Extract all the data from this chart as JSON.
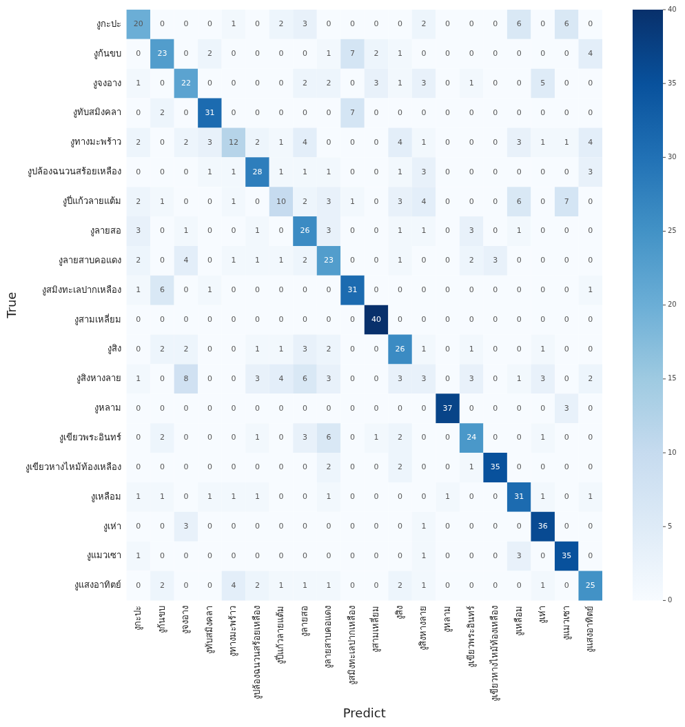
{
  "chart_data": {
    "type": "heatmap",
    "xlabel": "Predict",
    "ylabel": "True",
    "categories": [
      "งูกะปะ",
      "งูก้นขบ",
      "งูจงอาง",
      "งูทับสมิงคลา",
      "งูทางมะพร้าว",
      "งูปล้องฉนวนสร้อยเหลือง",
      "งูปี่แก้วลายแต้ม",
      "งูลายสอ",
      "งูลายสาบคอแดง",
      "งูสมิงทะเลปากเหลือง",
      "งูสามเหลี่ยม",
      "งูสิง",
      "งูสิงหางลาย",
      "งูหลาม",
      "งูเขียวพระอินทร์",
      "งูเขียวหางไหม้ท้องเหลือง",
      "งูเหลือม",
      "งูเห่า",
      "งูแมวเซา",
      "งูแสงอาทิตย์"
    ],
    "y_categories": [
      "งูกะปะ",
      "งูก้นขบ",
      "งูจงอาง",
      "งูทับสมิงคลา",
      "งูทางมะพร้าว",
      "งูปล้องฉนวนสร้อยเหลือง",
      "งูปี่แก้วลายแต้ม",
      "งูลายสอ",
      "งูลายสาบคอแดง",
      "งูสมิงทะเลปากเหลือง",
      "งูสามเหลี่ยม",
      "งูสิง",
      "งูสิงหางลาย",
      "งูหลาม",
      "งูเขียวพระอินทร์",
      "งูเขียวหางไหม้ท้องเหลือง",
      "งูเหลือม",
      "งูเห่า",
      "งูแมวเซา",
      "งูแสงอาทิตย์"
    ],
    "cells": [
      [
        20,
        0,
        0,
        0,
        1,
        0,
        2,
        3,
        0,
        0,
        0,
        0,
        2,
        0,
        0,
        0,
        6,
        0,
        6,
        0
      ],
      [
        0,
        23,
        0,
        2,
        0,
        0,
        0,
        0,
        1,
        7,
        2,
        1,
        0,
        0,
        0,
        0,
        0,
        0,
        0,
        4
      ],
      [
        1,
        0,
        22,
        0,
        0,
        0,
        0,
        2,
        2,
        0,
        3,
        1,
        3,
        0,
        1,
        0,
        0,
        5,
        0,
        0
      ],
      [
        0,
        2,
        0,
        31,
        0,
        0,
        0,
        0,
        0,
        7,
        0,
        0,
        0,
        0,
        0,
        0,
        0,
        0,
        0,
        0
      ],
      [
        2,
        0,
        2,
        3,
        12,
        2,
        1,
        4,
        0,
        0,
        0,
        4,
        1,
        0,
        0,
        0,
        3,
        1,
        1,
        4
      ],
      [
        0,
        0,
        0,
        1,
        1,
        28,
        1,
        1,
        1,
        0,
        0,
        1,
        3,
        0,
        0,
        0,
        0,
        0,
        0,
        3
      ],
      [
        2,
        1,
        0,
        0,
        1,
        0,
        10,
        2,
        3,
        1,
        0,
        3,
        4,
        0,
        0,
        0,
        6,
        0,
        7,
        0
      ],
      [
        3,
        0,
        1,
        0,
        0,
        1,
        0,
        26,
        3,
        0,
        0,
        1,
        1,
        0,
        3,
        0,
        1,
        0,
        0,
        0
      ],
      [
        2,
        0,
        4,
        0,
        1,
        1,
        1,
        2,
        23,
        0,
        0,
        1,
        0,
        0,
        2,
        3,
        0,
        0,
        0,
        0
      ],
      [
        1,
        6,
        0,
        1,
        0,
        0,
        0,
        0,
        0,
        31,
        0,
        0,
        0,
        0,
        0,
        0,
        0,
        0,
        0,
        1
      ],
      [
        0,
        0,
        0,
        0,
        0,
        0,
        0,
        0,
        0,
        0,
        40,
        0,
        0,
        0,
        0,
        0,
        0,
        0,
        0,
        0
      ],
      [
        0,
        2,
        2,
        0,
        0,
        1,
        1,
        3,
        2,
        0,
        0,
        26,
        1,
        0,
        1,
        0,
        0,
        1,
        0,
        0
      ],
      [
        1,
        0,
        8,
        0,
        0,
        3,
        4,
        6,
        3,
        0,
        0,
        3,
        3,
        0,
        3,
        0,
        1,
        3,
        0,
        2
      ],
      [
        0,
        0,
        0,
        0,
        0,
        0,
        0,
        0,
        0,
        0,
        0,
        0,
        0,
        37,
        0,
        0,
        0,
        0,
        3,
        0
      ],
      [
        0,
        2,
        0,
        0,
        0,
        1,
        0,
        3,
        6,
        0,
        1,
        2,
        0,
        0,
        24,
        0,
        0,
        1,
        0,
        0
      ],
      [
        0,
        0,
        0,
        0,
        0,
        0,
        0,
        0,
        2,
        0,
        0,
        2,
        0,
        0,
        1,
        35,
        0,
        0,
        0,
        0
      ],
      [
        1,
        1,
        0,
        1,
        1,
        1,
        0,
        0,
        1,
        0,
        0,
        0,
        0,
        1,
        0,
        0,
        31,
        1,
        0,
        1
      ],
      [
        0,
        0,
        3,
        0,
        0,
        0,
        0,
        0,
        0,
        0,
        0,
        0,
        1,
        0,
        0,
        0,
        0,
        36,
        0,
        0
      ],
      [
        1,
        0,
        0,
        0,
        0,
        0,
        0,
        0,
        0,
        0,
        0,
        0,
        1,
        0,
        0,
        0,
        3,
        0,
        35,
        0
      ],
      [
        0,
        2,
        0,
        0,
        4,
        2,
        1,
        1,
        1,
        0,
        0,
        2,
        1,
        0,
        0,
        0,
        0,
        1,
        0,
        25
      ]
    ],
    "data_labels": true,
    "clim": [
      0,
      40
    ],
    "cticks": [
      0,
      5,
      10,
      15,
      20,
      25,
      30,
      35,
      40
    ]
  }
}
